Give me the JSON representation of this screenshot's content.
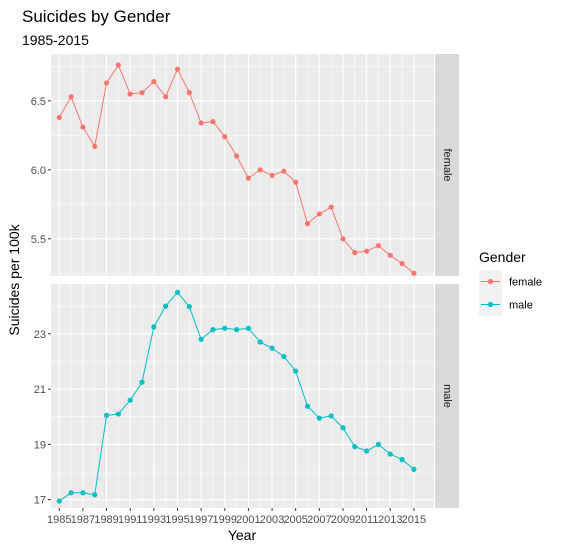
{
  "chart_data": {
    "type": "line",
    "title": "Suicides by Gender",
    "subtitle": "1985-2015",
    "xlabel": "Year",
    "ylabel": "Suicides per 100k",
    "x": [
      1985,
      1986,
      1987,
      1988,
      1989,
      1990,
      1991,
      1992,
      1993,
      1994,
      1995,
      1996,
      1997,
      1998,
      1999,
      2000,
      2001,
      2002,
      2003,
      2004,
      2005,
      2006,
      2007,
      2008,
      2009,
      2010,
      2011,
      2012,
      2013,
      2014,
      2015
    ],
    "x_tick_labels": [
      "1985",
      "1987",
      "1989",
      "1991",
      "1993",
      "1995",
      "1997",
      "1999",
      "2001",
      "2003",
      "2005",
      "2007",
      "2009",
      "2011",
      "2013",
      "2015"
    ],
    "xlim": [
      1984.3,
      2016.7
    ],
    "facets": [
      {
        "name": "female",
        "color": "#F8766D",
        "ylim": [
          5.23,
          6.84
        ],
        "y_ticks": [
          5.5,
          6.0,
          6.5
        ],
        "y_tick_labels": [
          "5.5",
          "6.0",
          "6.5"
        ],
        "values": [
          6.38,
          6.53,
          6.31,
          6.17,
          6.63,
          6.76,
          6.55,
          6.56,
          6.64,
          6.53,
          6.73,
          6.56,
          6.34,
          6.35,
          6.24,
          6.1,
          5.94,
          6.0,
          5.96,
          5.99,
          5.91,
          5.61,
          5.68,
          5.73,
          5.5,
          5.4,
          5.41,
          5.45,
          5.38,
          5.32,
          5.25
        ]
      },
      {
        "name": "male",
        "color": "#00BFC4",
        "ylim": [
          16.7,
          24.8
        ],
        "y_ticks": [
          17,
          19,
          21,
          23
        ],
        "y_tick_labels": [
          "17",
          "19",
          "21",
          "23"
        ],
        "values": [
          16.95,
          17.25,
          17.25,
          17.18,
          20.05,
          20.1,
          20.6,
          21.25,
          23.25,
          24.0,
          24.5,
          23.98,
          22.8,
          23.15,
          23.2,
          23.15,
          23.2,
          22.7,
          22.48,
          22.18,
          21.65,
          20.38,
          19.95,
          20.03,
          19.6,
          18.92,
          18.76,
          19.0,
          18.65,
          18.45,
          18.1
        ]
      }
    ],
    "legend": {
      "title": "Gender",
      "position": "right",
      "entries": [
        "female",
        "male"
      ]
    },
    "grid": true
  }
}
